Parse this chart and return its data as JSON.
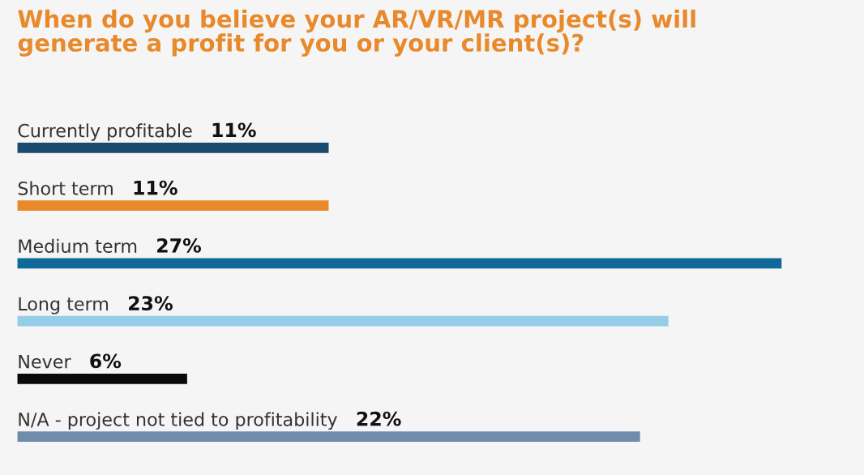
{
  "chart_data": {
    "type": "bar",
    "orientation": "horizontal",
    "title": "When do you believe your AR/VR/MR project(s) will\ngenerate a profit for you or your client(s)?",
    "categories": [
      "Currently profitable",
      "Short term",
      "Medium term",
      "Long term",
      "Never",
      "N/A - project not tied to profitability"
    ],
    "values": [
      11,
      11,
      27,
      23,
      6,
      22
    ],
    "colors": [
      "#1c4a6e",
      "#e8892b",
      "#0f6a99",
      "#95cde8",
      "#0a0a0a",
      "#6f8cab"
    ],
    "value_labels": [
      "11%",
      "11%",
      "27%",
      "23%",
      "6%",
      "22%"
    ],
    "legend": false
  }
}
